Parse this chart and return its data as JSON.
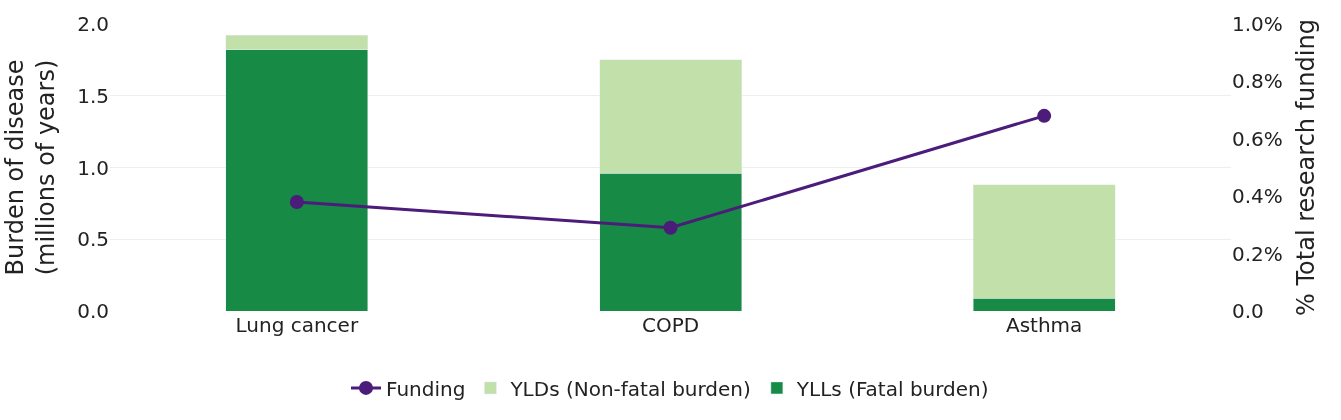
{
  "chart_data": {
    "type": "bar",
    "stacked": true,
    "categories": [
      "Lung cancer",
      "COPD",
      "Asthma"
    ],
    "ylabel": "Burden of disease\n(millions of years)",
    "y2label": "% Total research funding",
    "series": [
      {
        "name": "YLLs (Fatal burden)",
        "color": "#178a45",
        "values": [
          1.82,
          0.96,
          0.09
        ]
      },
      {
        "name": "YLDs (Non-fatal burden)",
        "color": "#c2e0aa",
        "values": [
          0.1,
          0.79,
          0.79
        ]
      },
      {
        "name": "Funding",
        "type": "line",
        "axis": "y2",
        "color": "#4b1c7a",
        "marker": "circle",
        "values": [
          0.38,
          0.29,
          0.68
        ]
      }
    ],
    "ylim": [
      0,
      2
    ],
    "yticks": [
      {
        "value": 0,
        "label": "0.0"
      },
      0.5,
      {
        "value": 1,
        "label": "1.0"
      },
      1.5,
      {
        "value": 2,
        "label": "2.0"
      }
    ],
    "y2lim": [
      0,
      1
    ],
    "y2ticks": [
      {
        "value": 0,
        "label": "0.0"
      },
      {
        "value": 0.2,
        "label": "0.2%"
      },
      {
        "value": 0.4,
        "label": "0.4%"
      },
      {
        "value": 0.6,
        "label": "0.6%"
      },
      {
        "value": 0.8,
        "label": "0.8%"
      },
      {
        "value": 1,
        "label": "1.0%"
      }
    ],
    "grid": "y",
    "legend": "bottom"
  }
}
